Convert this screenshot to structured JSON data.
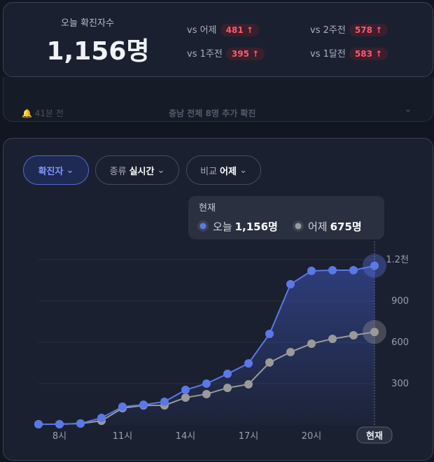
{
  "header": {
    "title": "오늘 확진자수",
    "count": "1,156명",
    "comparisons": [
      {
        "label": "vs 어제",
        "value": "481"
      },
      {
        "label": "vs 2주전",
        "value": "578"
      },
      {
        "label": "vs 1주전",
        "value": "395"
      },
      {
        "label": "vs 1달전",
        "value": "583"
      }
    ]
  },
  "notice": {
    "time": "41분 전",
    "text": "충남 전체 8명 추가 확진"
  },
  "filters": [
    {
      "label": "확진자"
    },
    {
      "label": "종류",
      "value": "실시간"
    },
    {
      "label": "비교",
      "value": "어제"
    }
  ],
  "chart_data": {
    "type": "line",
    "categories": [
      null,
      "8시",
      null,
      null,
      "11시",
      null,
      null,
      "14시",
      null,
      null,
      "17시",
      null,
      null,
      "20시",
      null,
      null,
      "현재"
    ],
    "series": [
      {
        "name": "오늘",
        "color": "#5b78e8",
        "values": [
          5,
          5,
          10,
          51,
          132,
          147,
          168,
          254,
          300,
          371,
          447,
          661,
          1022,
          1119,
          1124,
          1124,
          1156
        ]
      },
      {
        "name": "어제",
        "color": "#9a9a9a",
        "values": [
          5,
          5,
          10,
          30,
          122,
          142,
          142,
          198,
          224,
          269,
          295,
          453,
          529,
          590,
          625,
          651,
          675
        ]
      }
    ],
    "ylim": [
      0,
      1200
    ],
    "yticks": [
      300,
      600,
      900,
      {
        "value": 1200,
        "label": "1.2천"
      }
    ],
    "grid": true,
    "tooltip": {
      "title": "현재",
      "labels": [
        "1,156명",
        "675명"
      ]
    }
  }
}
